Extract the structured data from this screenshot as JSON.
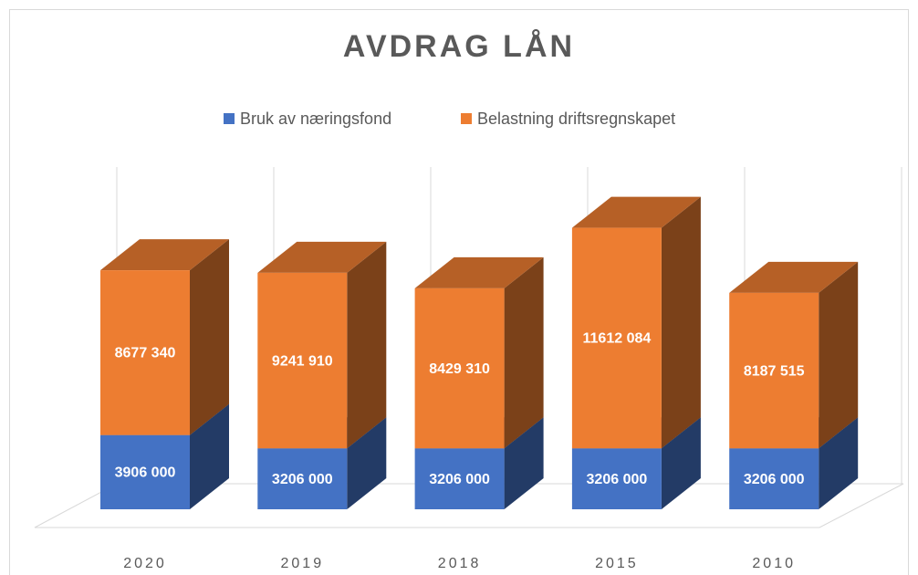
{
  "chart_data": {
    "type": "bar3d_stacked",
    "title": "AVDRAG LÅN",
    "categories": [
      "2020",
      "2019",
      "2018",
      "2015",
      "2010"
    ],
    "series": [
      {
        "name": "Bruk av næringsfond",
        "color": "#4472c4",
        "values": [
          3906000,
          3206000,
          3206000,
          3206000,
          3206000
        ],
        "value_labels": [
          "3906 000",
          "3206 000",
          "3206 000",
          "3206 000",
          "3206 000"
        ]
      },
      {
        "name": "Belastning driftsregnskapet",
        "color": "#ed7d31",
        "values": [
          8677340,
          9241910,
          8429310,
          11612084,
          8187515
        ],
        "value_labels": [
          "8677 340",
          "9241 910",
          "8429 310",
          "11612 084",
          "8187 515"
        ]
      }
    ],
    "ylim": [
      0,
      16000000
    ],
    "legend": "top"
  }
}
